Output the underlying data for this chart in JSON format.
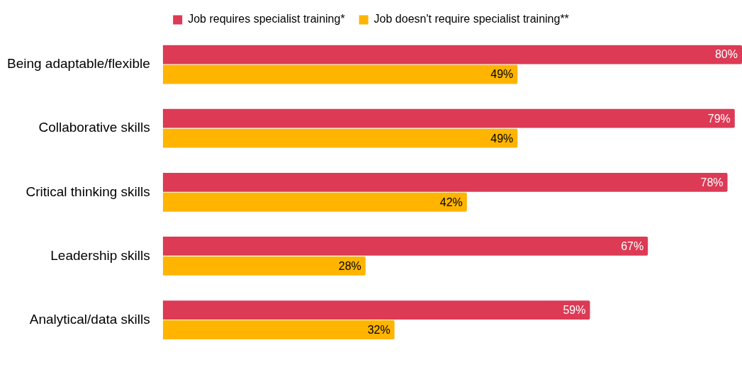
{
  "chart_data": {
    "type": "bar",
    "orientation": "horizontal",
    "legend": "top",
    "categories": [
      "Being adaptable/flexible",
      "Collaborative skills",
      "Critical thinking skills",
      "Leadership skills",
      "Analytical/data skills"
    ],
    "series": [
      {
        "name": "Job requires specialist training*",
        "color": "#dc3a55",
        "values": [
          80,
          79,
          78,
          67,
          59
        ],
        "value_labels": [
          "80%",
          "79%",
          "78%",
          "67%",
          "59%"
        ]
      },
      {
        "name": "Job doesn't require specialist training**",
        "color": "#ffb400",
        "values": [
          49,
          49,
          42,
          28,
          32
        ],
        "value_labels": [
          "49%",
          "49%",
          "42%",
          "28%",
          "32%"
        ]
      }
    ]
  }
}
